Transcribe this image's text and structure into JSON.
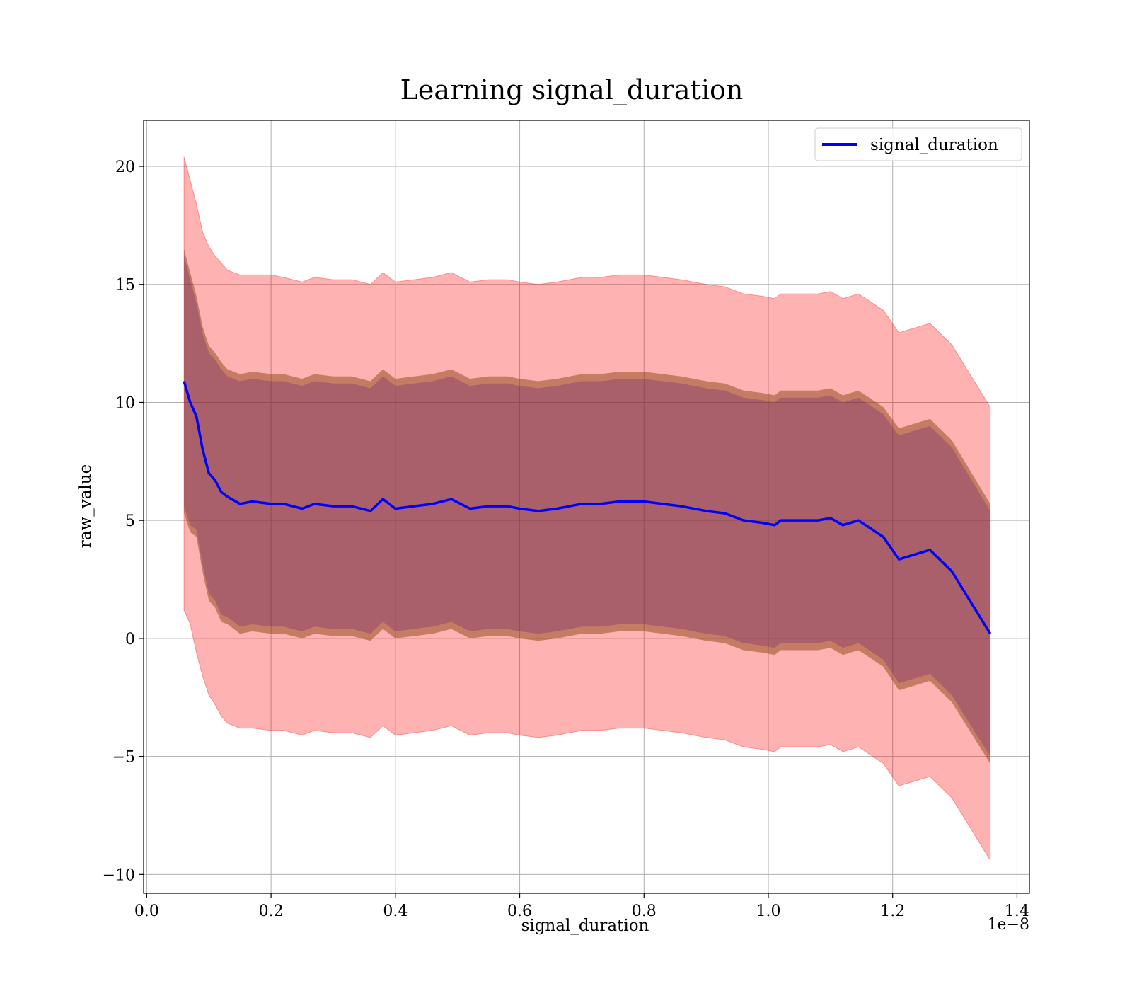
{
  "chart_data": {
    "type": "line",
    "title": "Learning signal_duration",
    "xlabel": "signal_duration",
    "ylabel": "raw_value",
    "x_offset_label": "1e−8",
    "xlim": [
      -0.005,
      1.42
    ],
    "ylim": [
      -10.8,
      21.95
    ],
    "x_ticks": [
      0.0,
      0.2,
      0.4,
      0.6,
      0.8,
      1.0,
      1.2,
      1.4
    ],
    "x_tick_labels": [
      "0.0",
      "0.2",
      "0.4",
      "0.6",
      "0.8",
      "1.0",
      "1.2",
      "1.4"
    ],
    "y_ticks": [
      -10,
      -5,
      0,
      5,
      10,
      15,
      20
    ],
    "y_tick_labels": [
      "−10",
      "−5",
      "0",
      "5",
      "10",
      "15",
      "20"
    ],
    "grid": true,
    "legend_position": "top-right",
    "colors": {
      "mean_line": "#0000ff",
      "outer_band": "#ff0000",
      "inner_band": "#8b4513",
      "inner_band_2": "#4b0082"
    },
    "series": [
      {
        "name": "signal_duration",
        "x": [
          0.06,
          0.07,
          0.08,
          0.09,
          0.1,
          0.11,
          0.12,
          0.13,
          0.15,
          0.17,
          0.2,
          0.22,
          0.25,
          0.27,
          0.3,
          0.33,
          0.36,
          0.38,
          0.4,
          0.43,
          0.46,
          0.49,
          0.52,
          0.55,
          0.58,
          0.6,
          0.63,
          0.66,
          0.7,
          0.73,
          0.76,
          0.8,
          0.83,
          0.86,
          0.9,
          0.93,
          0.96,
          0.99,
          1.01,
          1.02,
          1.05,
          1.08,
          1.1,
          1.12,
          1.145,
          1.185,
          1.21,
          1.26,
          1.295,
          1.357
        ],
        "mean": [
          10.9,
          10.0,
          9.4,
          8.0,
          7.0,
          6.7,
          6.2,
          6.0,
          5.7,
          5.8,
          5.7,
          5.7,
          5.5,
          5.7,
          5.6,
          5.6,
          5.4,
          5.9,
          5.5,
          5.6,
          5.7,
          5.9,
          5.5,
          5.6,
          5.6,
          5.5,
          5.4,
          5.5,
          5.7,
          5.7,
          5.8,
          5.8,
          5.7,
          5.6,
          5.4,
          5.3,
          5.0,
          4.9,
          4.8,
          5.0,
          5.0,
          5.0,
          5.1,
          4.8,
          5.0,
          4.3,
          3.35,
          3.75,
          2.85,
          0.2
        ],
        "std1_upper": [
          16.5,
          15.5,
          14.5,
          13.2,
          12.4,
          12.1,
          11.7,
          11.4,
          11.2,
          11.3,
          11.2,
          11.2,
          11.0,
          11.2,
          11.1,
          11.1,
          10.9,
          11.4,
          11.0,
          11.1,
          11.2,
          11.4,
          11.0,
          11.1,
          11.1,
          11.0,
          10.9,
          11.0,
          11.2,
          11.2,
          11.3,
          11.3,
          11.2,
          11.1,
          10.9,
          10.8,
          10.5,
          10.4,
          10.3,
          10.5,
          10.5,
          10.5,
          10.6,
          10.3,
          10.5,
          9.8,
          8.9,
          9.3,
          8.4,
          5.7
        ],
        "std1_lower": [
          5.3,
          4.5,
          4.3,
          2.8,
          1.6,
          1.3,
          0.7,
          0.6,
          0.2,
          0.3,
          0.2,
          0.2,
          0.0,
          0.2,
          0.1,
          0.1,
          -0.1,
          0.4,
          0.0,
          0.1,
          0.2,
          0.4,
          0.0,
          0.1,
          0.1,
          0.0,
          -0.1,
          0.0,
          0.2,
          0.2,
          0.3,
          0.3,
          0.2,
          0.1,
          -0.1,
          -0.2,
          -0.5,
          -0.6,
          -0.7,
          -0.5,
          -0.5,
          -0.5,
          -0.4,
          -0.7,
          -0.5,
          -1.2,
          -2.2,
          -1.8,
          -2.7,
          -5.3
        ],
        "std2_upper": [
          20.4,
          19.4,
          18.4,
          17.2,
          16.6,
          16.2,
          15.9,
          15.6,
          15.4,
          15.4,
          15.4,
          15.3,
          15.1,
          15.3,
          15.2,
          15.2,
          15.0,
          15.5,
          15.1,
          15.2,
          15.3,
          15.5,
          15.1,
          15.2,
          15.2,
          15.1,
          15.0,
          15.1,
          15.3,
          15.3,
          15.4,
          15.4,
          15.3,
          15.2,
          15.0,
          14.9,
          14.6,
          14.5,
          14.4,
          14.6,
          14.6,
          14.6,
          14.7,
          14.4,
          14.6,
          13.9,
          12.95,
          13.35,
          12.45,
          9.8
        ],
        "std2_lower": [
          1.2,
          0.6,
          -0.6,
          -1.6,
          -2.4,
          -2.8,
          -3.3,
          -3.6,
          -3.8,
          -3.8,
          -3.9,
          -3.9,
          -4.1,
          -3.9,
          -4.0,
          -4.0,
          -4.2,
          -3.7,
          -4.1,
          -4.0,
          -3.9,
          -3.7,
          -4.1,
          -4.0,
          -4.0,
          -4.1,
          -4.2,
          -4.1,
          -3.9,
          -3.9,
          -3.8,
          -3.8,
          -3.9,
          -4.0,
          -4.2,
          -4.3,
          -4.6,
          -4.7,
          -4.8,
          -4.6,
          -4.6,
          -4.6,
          -4.5,
          -4.8,
          -4.6,
          -5.3,
          -6.25,
          -5.85,
          -6.75,
          -9.4
        ]
      }
    ]
  }
}
